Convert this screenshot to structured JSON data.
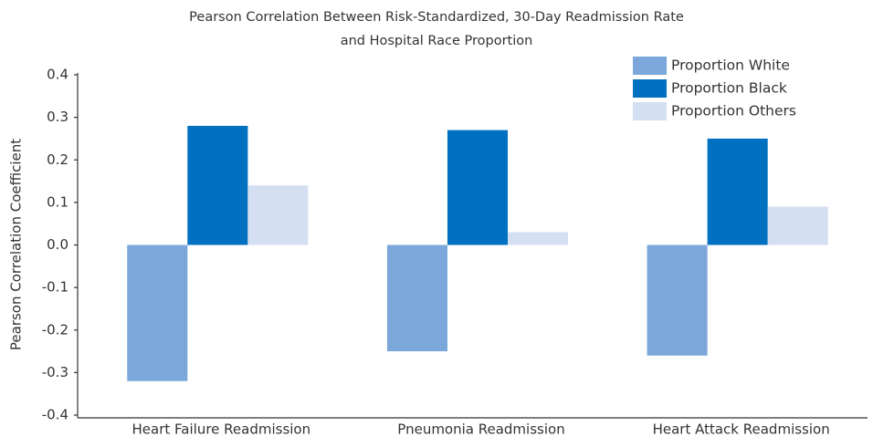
{
  "chart_data": {
    "type": "bar",
    "title": [
      "Pearson Correlation Between Risk-Standardized, 30-Day Readmission Rate",
      "and Hospital Race Proportion"
    ],
    "ylabel": "Pearson Correlation Coefficient",
    "categories": [
      "Heart Failure Readmission",
      "Pneumonia Readmission",
      "Heart Attack Readmission"
    ],
    "series": [
      {
        "name": "Proportion White",
        "color": "#7ba7da",
        "values": [
          -0.32,
          -0.25,
          -0.26
        ]
      },
      {
        "name": "Proportion Black",
        "color": "#0070c0",
        "values": [
          0.28,
          0.27,
          0.25
        ]
      },
      {
        "name": "Proportion Others",
        "color": "#d5dff2",
        "values": [
          0.14,
          0.03,
          0.09
        ]
      }
    ],
    "ylim": [
      -0.4,
      0.4
    ],
    "yticks": [
      -0.4,
      -0.3,
      -0.2,
      -0.1,
      {
        "value": 0,
        "label": "0.0"
      },
      0.1,
      0.2,
      0.3,
      0.4
    ],
    "grid": false,
    "legend": "upper right"
  }
}
